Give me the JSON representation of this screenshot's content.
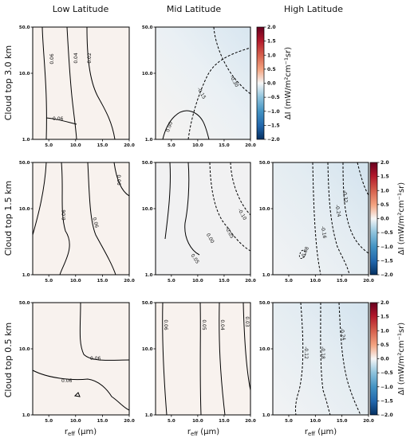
{
  "chart_data": {
    "type": "heatmap",
    "column_titles": [
      "Low Latitude",
      "Mid Latitude",
      "High Latitude"
    ],
    "row_titles": [
      "Cloud top 3.0 km",
      "Cloud top 1.5 km",
      "Cloud top 0.5 km"
    ],
    "xlabel_main": "r",
    "xlabel_sub": "eff",
    "xlabel_units": " (μm)",
    "x_ticks": [
      "5.0",
      "10.0",
      "15.0",
      "20.0"
    ],
    "y_ticks": [
      "1.0",
      "10.0",
      "50.0"
    ],
    "xlim": [
      2,
      20
    ],
    "ylim": [
      1,
      50
    ],
    "yscale": "log",
    "colorbar": {
      "label": "ΔI (mW/m²cm⁻¹sr)",
      "ticks": [
        "2.0",
        "1.5",
        "1.0",
        "0.5",
        "0.0",
        "−0.5",
        "−1.0",
        "−1.5",
        "−2.0"
      ],
      "range": [
        -2.0,
        2.0
      ],
      "colormap": "RdBu_r"
    },
    "panels": [
      {
        "row": 0,
        "col": 0,
        "fill": "#f8f2ee",
        "contour_labels": [
          "0.06",
          "0.04",
          "0.02",
          "0.06"
        ]
      },
      {
        "row": 0,
        "col": 1,
        "fill": "#eef2f5",
        "contour_labels": [
          "0.00",
          "-0.15",
          "-0.30"
        ]
      },
      {
        "row": 0,
        "col": 2,
        "empty": true
      },
      {
        "row": 1,
        "col": 0,
        "fill": "#f8f2ee",
        "contour_labels": [
          "0.06",
          "0.06",
          "0.06"
        ]
      },
      {
        "row": 1,
        "col": 1,
        "fill": "#f1f1f2",
        "contour_labels": [
          "0.05",
          "0.00",
          "-0.05",
          "-0.10"
        ]
      },
      {
        "row": 1,
        "col": 2,
        "fill": "#e8eff4",
        "contour_labels": [
          "-0.08",
          "-0.16",
          "-0.24",
          "-0.32"
        ]
      },
      {
        "row": 2,
        "col": 0,
        "fill": "#f8f2ee",
        "contour_labels": [
          "0.06",
          "0.06"
        ]
      },
      {
        "row": 2,
        "col": 1,
        "fill": "#f8f2ee",
        "contour_labels": [
          "0.06",
          "0.05",
          "0.04",
          "0.03"
        ]
      },
      {
        "row": 2,
        "col": 2,
        "fill": "#e8eff4",
        "contour_labels": [
          "-0.12",
          "-0.18",
          "-0.24"
        ]
      }
    ]
  }
}
